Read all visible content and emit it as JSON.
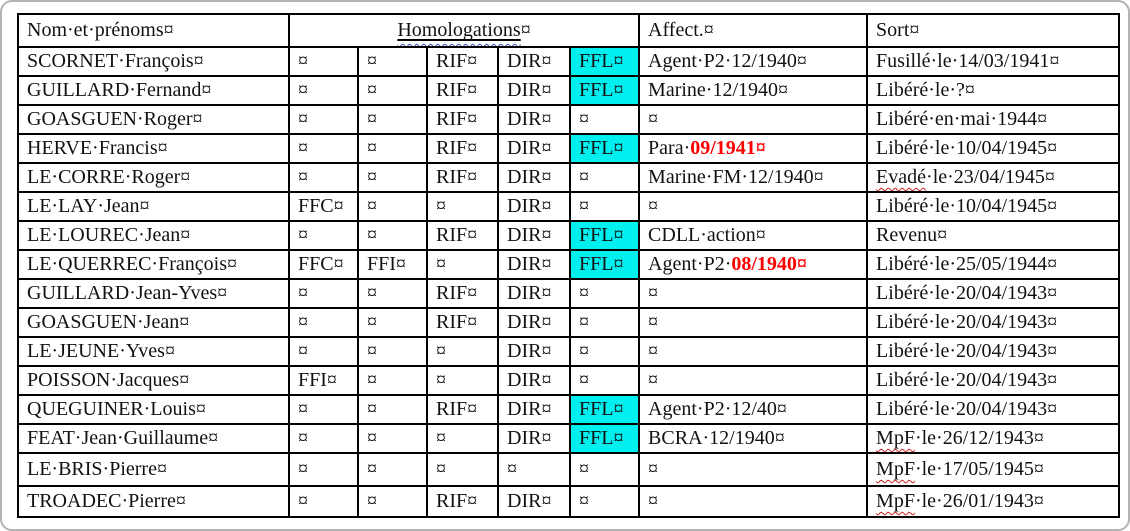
{
  "colors": {
    "highlight_cyan": "#00f0f0",
    "red_text": "#ff0000",
    "squiggle_red": "#cc2222",
    "squiggle_blue": "#3a55c0",
    "border": "#000000"
  },
  "header": {
    "name": "Nom·et·prénoms¤",
    "homologations": "Homologations",
    "homologations_marker": "¤",
    "affect": "Affect.¤",
    "sort": "Sort¤"
  },
  "rows": [
    {
      "name": "SCORNET·François¤",
      "homologations": [
        {
          "text": "¤"
        },
        {
          "text": "¤"
        },
        {
          "text": "RIF¤"
        },
        {
          "text": "DIR¤"
        },
        {
          "text": "FFL¤",
          "highlight": true
        }
      ],
      "affect": [
        {
          "text": "Agent·P2·12/1940¤"
        }
      ],
      "sort": [
        {
          "text": "Fusillé·le·14/03/1941¤"
        }
      ]
    },
    {
      "name": "GUILLARD·Fernand¤",
      "homologations": [
        {
          "text": "¤"
        },
        {
          "text": "¤"
        },
        {
          "text": "RIF¤"
        },
        {
          "text": "DIR¤"
        },
        {
          "text": "FFL¤",
          "highlight": true
        }
      ],
      "affect": [
        {
          "text": "Marine·12/1940¤"
        }
      ],
      "sort": [
        {
          "text": "Libéré·le·?¤"
        }
      ]
    },
    {
      "name": "GOASGUEN·Roger¤",
      "homologations": [
        {
          "text": "¤"
        },
        {
          "text": "¤"
        },
        {
          "text": "RIF¤"
        },
        {
          "text": "DIR¤"
        },
        {
          "text": "¤"
        }
      ],
      "affect": [
        {
          "text": "¤"
        }
      ],
      "sort": [
        {
          "text": "Libéré·en·mai·1944¤"
        }
      ]
    },
    {
      "name": "HERVE·Francis¤",
      "homologations": [
        {
          "text": "¤"
        },
        {
          "text": "¤"
        },
        {
          "text": "RIF¤"
        },
        {
          "text": "DIR¤"
        },
        {
          "text": "FFL¤",
          "highlight": true
        }
      ],
      "affect": [
        {
          "text": "Para·"
        },
        {
          "text": "09/1941¤",
          "red": true
        }
      ],
      "sort": [
        {
          "text": "Libéré·le·10/04/1945¤"
        }
      ]
    },
    {
      "name": "LE·CORRE·Roger¤",
      "homologations": [
        {
          "text": "¤"
        },
        {
          "text": "¤"
        },
        {
          "text": "RIF¤"
        },
        {
          "text": "DIR¤"
        },
        {
          "text": "¤"
        }
      ],
      "affect": [
        {
          "text": "Marine·FM·12/1940¤"
        }
      ],
      "sort": [
        {
          "text": "Evadé",
          "squiggle": true
        },
        {
          "text": "·le·23/04/1945¤"
        }
      ]
    },
    {
      "name": "LE·LAY·Jean¤",
      "homologations": [
        {
          "text": "FFC¤"
        },
        {
          "text": "¤"
        },
        {
          "text": "¤"
        },
        {
          "text": "DIR¤"
        },
        {
          "text": "¤"
        }
      ],
      "affect": [
        {
          "text": "¤"
        }
      ],
      "sort": [
        {
          "text": "Libéré·le·10/04/1945¤"
        }
      ]
    },
    {
      "name": "LE·LOUREC·Jean¤",
      "homologations": [
        {
          "text": "¤"
        },
        {
          "text": "¤"
        },
        {
          "text": "RIF¤"
        },
        {
          "text": "DIR¤"
        },
        {
          "text": "FFL¤",
          "highlight": true
        }
      ],
      "affect": [
        {
          "text": "CDLL·action¤"
        }
      ],
      "sort": [
        {
          "text": "Revenu¤"
        }
      ]
    },
    {
      "name": "LE·QUERREC·François¤",
      "homologations": [
        {
          "text": "FFC¤"
        },
        {
          "text": "FFI¤"
        },
        {
          "text": "¤"
        },
        {
          "text": "DIR¤"
        },
        {
          "text": "FFL¤",
          "highlight": true
        }
      ],
      "affect": [
        {
          "text": "Agent·P2·"
        },
        {
          "text": "08/1940¤",
          "red": true
        }
      ],
      "sort": [
        {
          "text": "Libéré·le·25/05/1944¤"
        }
      ]
    },
    {
      "name": "GUILLARD·Jean-Yves¤",
      "homologations": [
        {
          "text": "¤"
        },
        {
          "text": "¤"
        },
        {
          "text": "RIF¤"
        },
        {
          "text": "DIR¤"
        },
        {
          "text": "¤"
        }
      ],
      "affect": [
        {
          "text": "¤"
        }
      ],
      "sort": [
        {
          "text": "Libéré·le·20/04/1943¤"
        }
      ]
    },
    {
      "name": "GOASGUEN·Jean¤",
      "homologations": [
        {
          "text": "¤"
        },
        {
          "text": "¤"
        },
        {
          "text": "RIF¤"
        },
        {
          "text": "DIR¤"
        },
        {
          "text": "¤"
        }
      ],
      "affect": [
        {
          "text": "¤"
        }
      ],
      "sort": [
        {
          "text": "Libéré·le·20/04/1943¤"
        }
      ]
    },
    {
      "name": "LE·JEUNE·Yves¤",
      "homologations": [
        {
          "text": "¤"
        },
        {
          "text": "¤"
        },
        {
          "text": "¤"
        },
        {
          "text": "DIR¤"
        },
        {
          "text": "¤"
        }
      ],
      "affect": [
        {
          "text": "¤"
        }
      ],
      "sort": [
        {
          "text": "Libéré·le·20/04/1943¤"
        }
      ]
    },
    {
      "name": "POISSON·Jacques¤",
      "homologations": [
        {
          "text": "FFI¤"
        },
        {
          "text": "¤"
        },
        {
          "text": "¤"
        },
        {
          "text": "DIR¤"
        },
        {
          "text": "¤"
        }
      ],
      "affect": [
        {
          "text": "¤"
        }
      ],
      "sort": [
        {
          "text": "Libéré·le·20/04/1943¤"
        }
      ]
    },
    {
      "name": "QUEGUINER·Louis¤",
      "homologations": [
        {
          "text": "¤"
        },
        {
          "text": "¤"
        },
        {
          "text": "RIF¤"
        },
        {
          "text": "DIR¤"
        },
        {
          "text": "FFL¤",
          "highlight": true
        }
      ],
      "affect": [
        {
          "text": "Agent·P2·12/40¤"
        }
      ],
      "sort": [
        {
          "text": "Libéré·le·20/04/1943¤"
        }
      ]
    },
    {
      "name": "FEAT·Jean·Guillaume¤",
      "homologations": [
        {
          "text": "¤"
        },
        {
          "text": "¤"
        },
        {
          "text": "¤"
        },
        {
          "text": "DIR¤"
        },
        {
          "text": "FFL¤",
          "highlight": true
        }
      ],
      "affect": [
        {
          "text": "BCRA·12/1940¤"
        }
      ],
      "sort": [
        {
          "text": "MpF",
          "squiggle": true
        },
        {
          "text": "·le·26/12/1943¤"
        }
      ]
    },
    {
      "name": "LE·BRIS·Pierre¤",
      "homologations": [
        {
          "text": "¤"
        },
        {
          "text": "¤"
        },
        {
          "text": "¤"
        },
        {
          "text": "¤"
        },
        {
          "text": "¤"
        }
      ],
      "affect": [
        {
          "text": "¤"
        }
      ],
      "sort": [
        {
          "text": "MpF",
          "squiggle": true
        },
        {
          "text": "·le·17/05/1945¤"
        }
      ]
    },
    {
      "name": "TROADEC·Pierre¤",
      "homologations": [
        {
          "text": "¤"
        },
        {
          "text": "¤"
        },
        {
          "text": "RIF¤"
        },
        {
          "text": "DIR¤"
        },
        {
          "text": "¤"
        }
      ],
      "affect": [
        {
          "text": "¤"
        }
      ],
      "sort": [
        {
          "text": "MpF",
          "squiggle": true
        },
        {
          "text": "·le·26/01/1943¤"
        }
      ]
    }
  ]
}
